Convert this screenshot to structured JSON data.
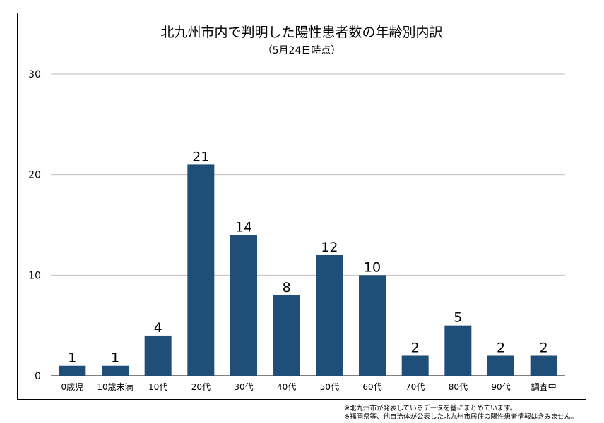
{
  "chart_data": {
    "type": "bar",
    "title": "北九州市内で判明した陽性患者数の年齢別内訳",
    "subtitle": "（5月24日時点）",
    "categories": [
      "0歳児",
      "10歳未満",
      "10代",
      "20代",
      "30代",
      "40代",
      "50代",
      "60代",
      "70代",
      "80代",
      "90代",
      "調査中"
    ],
    "values": [
      1,
      1,
      4,
      21,
      14,
      8,
      12,
      10,
      2,
      5,
      2,
      2
    ],
    "ylim": [
      0,
      30
    ],
    "yticks": [
      0,
      10,
      20,
      30
    ],
    "grid": true,
    "bar_color": "#1f4e79",
    "xlabel": "",
    "ylabel": ""
  },
  "notes": [
    "※北九州市が発表しているデータを基にまとめています。",
    "※福岡県等、他自治体が公表した北九州市居住の陽性患者情報は含みません。"
  ]
}
